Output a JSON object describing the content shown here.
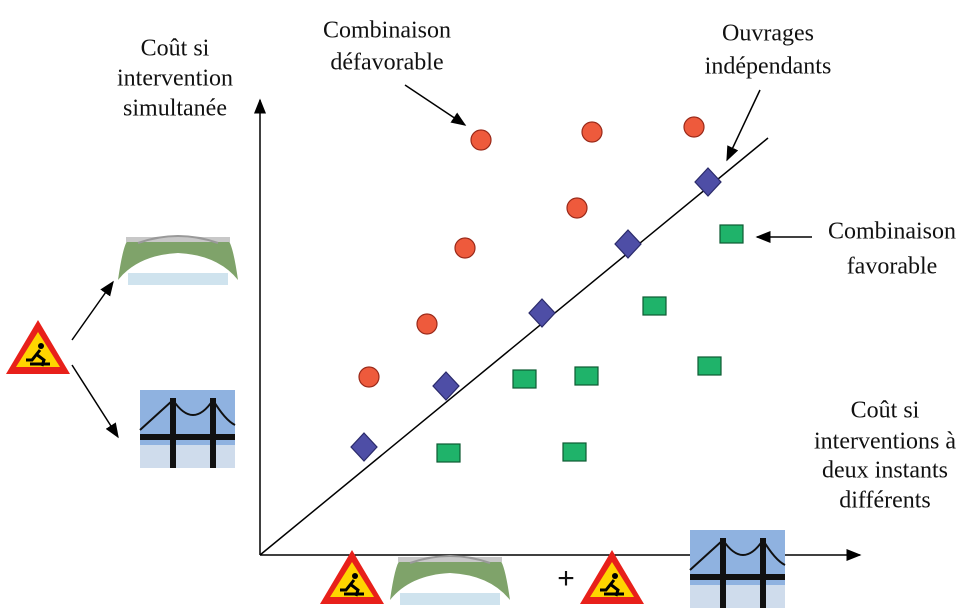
{
  "labels": {
    "y_axis": [
      "Coût si",
      "intervention",
      "simultanée"
    ],
    "unfavorable": [
      "Combinaison",
      "défavorable"
    ],
    "independent": [
      "Ouvrages",
      "indépendants"
    ],
    "favorable": [
      "Combinaison",
      "favorable"
    ],
    "x_axis": [
      "Coût si",
      "interventions à",
      "deux instants",
      "différents"
    ],
    "plus": "+"
  }
}
